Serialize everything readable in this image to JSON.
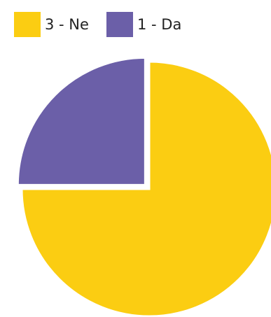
{
  "chart_data": {
    "type": "pie",
    "categories": [
      "3 - Ne",
      "1 - Da"
    ],
    "values": [
      75,
      25
    ],
    "colors": [
      "#fbcd12",
      "#6b5fa8"
    ],
    "legend": "top"
  }
}
